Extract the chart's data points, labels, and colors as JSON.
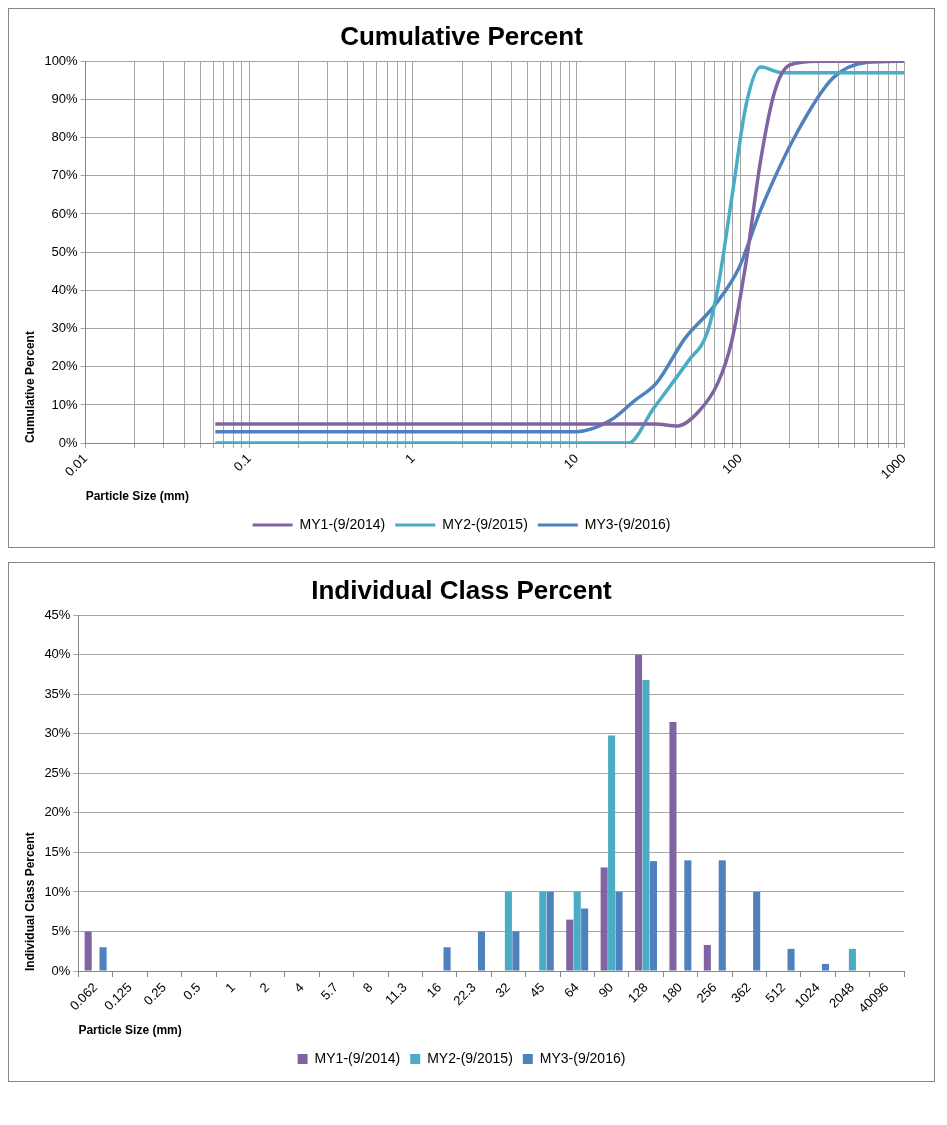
{
  "chart_data": [
    {
      "type": "line",
      "title": "Cumulative Percent",
      "xlabel": "Particle Size (mm)",
      "ylabel": "Cumulative Percent",
      "log": "x",
      "grid": true,
      "legend": "bottom",
      "marker": "none",
      "line_style": "solid",
      "xlim": [
        0.01,
        1000
      ],
      "ylim": [
        0,
        100
      ],
      "xticks": [
        0.01,
        {
          "value": 0.02,
          "label": null
        },
        {
          "value": 0.03,
          "label": null
        },
        {
          "value": 0.04,
          "label": null
        },
        {
          "value": 0.05,
          "label": null
        },
        {
          "value": 0.06,
          "label": null
        },
        {
          "value": 0.07,
          "label": null
        },
        {
          "value": 0.08,
          "label": null
        },
        {
          "value": 0.09,
          "label": null
        },
        0.1,
        {
          "value": 0.2,
          "label": null
        },
        {
          "value": 0.3,
          "label": null
        },
        {
          "value": 0.4,
          "label": null
        },
        {
          "value": 0.5,
          "label": null
        },
        {
          "value": 0.6,
          "label": null
        },
        {
          "value": 0.7,
          "label": null
        },
        {
          "value": 0.8,
          "label": null
        },
        {
          "value": 0.9,
          "label": null
        },
        1,
        {
          "value": 2,
          "label": null
        },
        {
          "value": 3,
          "label": null
        },
        {
          "value": 4,
          "label": null
        },
        {
          "value": 5,
          "label": null
        },
        {
          "value": 6,
          "label": null
        },
        {
          "value": 7,
          "label": null
        },
        {
          "value": 8,
          "label": null
        },
        {
          "value": 9,
          "label": null
        },
        10,
        {
          "value": 20,
          "label": null
        },
        {
          "value": 30,
          "label": null
        },
        {
          "value": 40,
          "label": null
        },
        {
          "value": 50,
          "label": null
        },
        {
          "value": 60,
          "label": null
        },
        {
          "value": 70,
          "label": null
        },
        {
          "value": 80,
          "label": null
        },
        {
          "value": 90,
          "label": null
        },
        100,
        {
          "value": 200,
          "label": null
        },
        {
          "value": 300,
          "label": null
        },
        {
          "value": 400,
          "label": null
        },
        {
          "value": 500,
          "label": null
        },
        {
          "value": 600,
          "label": null
        },
        {
          "value": 700,
          "label": null
        },
        {
          "value": 800,
          "label": null
        },
        {
          "value": 900,
          "label": null
        },
        1000
      ],
      "yticks": [
        {
          "value": 0,
          "label": "0%"
        },
        {
          "value": 10,
          "label": "10%"
        },
        {
          "value": 20,
          "label": "20%"
        },
        {
          "value": 30,
          "label": "30%"
        },
        {
          "value": 40,
          "label": "40%"
        },
        {
          "value": 50,
          "label": "50%"
        },
        {
          "value": 60,
          "label": "60%"
        },
        {
          "value": 70,
          "label": "70%"
        },
        {
          "value": 80,
          "label": "80%"
        },
        {
          "value": 90,
          "label": "90%"
        },
        {
          "value": 100,
          "label": "100%"
        }
      ],
      "series": [
        {
          "name": "MY1-(9/2014)",
          "color": "#8064a2",
          "x": [
            0.062,
            1,
            10,
            30,
            41.5,
            55,
            72.8,
            88.5,
            109,
            133,
            162,
            200,
            300,
            1000
          ],
          "values": [
            5,
            5,
            5,
            5,
            4.5,
            8,
            15.7,
            26.6,
            48,
            74,
            92,
            99,
            100,
            100
          ]
        },
        {
          "name": "MY2-(9/2015)",
          "color": "#4bacc6",
          "x": [
            0.062,
            1,
            10,
            20.7,
            29.3,
            48.3,
            62.5,
            72.8,
            88.5,
            109,
            133,
            180,
            1000
          ],
          "values": [
            0,
            0,
            0,
            0,
            8.9,
            21.6,
            28.7,
            40.5,
            64,
            89,
            98.5,
            97,
            97
          ]
        },
        {
          "name": "MY3-(9/2016)",
          "color": "#4f81bd",
          "x": [
            0.062,
            1,
            10,
            16,
            22.7,
            30.7,
            46,
            69.5,
            98.4,
            133,
            220,
            368,
            600,
            1000
          ],
          "values": [
            3,
            3,
            3,
            5.9,
            11.2,
            15.7,
            27.5,
            36,
            46,
            61,
            81,
            95.6,
            99.7,
            100
          ]
        }
      ]
    },
    {
      "type": "bar",
      "title": "Individual Class Percent",
      "xlabel": "Particle Size (mm)",
      "ylabel": "Individual Class Percent",
      "grid": "y",
      "legend": "bottom",
      "categories": [
        "0.062",
        "0.125",
        "0.25",
        "0.5",
        "1",
        "2",
        "4",
        "5.7",
        "8",
        "11.3",
        "16",
        "22.3",
        "32",
        "45",
        "64",
        "90",
        "128",
        "180",
        "256",
        "362",
        "512",
        "1024",
        "2048",
        "40096"
      ],
      "ylim": [
        0,
        45
      ],
      "yticks": [
        {
          "value": 0,
          "label": "0%"
        },
        {
          "value": 5,
          "label": "5%"
        },
        {
          "value": 10,
          "label": "10%"
        },
        {
          "value": 15,
          "label": "15%"
        },
        {
          "value": 20,
          "label": "20%"
        },
        {
          "value": 25,
          "label": "25%"
        },
        {
          "value": 30,
          "label": "30%"
        },
        {
          "value": 35,
          "label": "35%"
        },
        {
          "value": 40,
          "label": "40%"
        },
        {
          "value": 45,
          "label": "45%"
        }
      ],
      "series": [
        {
          "name": "MY1-(9/2014)",
          "color": "#8064a2",
          "values": [
            5,
            0,
            0,
            0,
            0,
            0,
            0,
            0,
            0,
            0,
            0,
            0,
            0,
            0,
            6.5,
            13.1,
            40,
            31.5,
            3.3,
            0,
            0,
            0,
            0,
            0
          ]
        },
        {
          "name": "MY2-(9/2015)",
          "color": "#4bacc6",
          "values": [
            0,
            0,
            0,
            0,
            0,
            0,
            0,
            0,
            0,
            0,
            0,
            0,
            10,
            10,
            10,
            29.8,
            36.8,
            0,
            0,
            0,
            0,
            0,
            2.8,
            0
          ]
        },
        {
          "name": "MY3-(9/2016)",
          "color": "#4f81bd",
          "values": [
            3,
            0,
            0,
            0,
            0,
            0,
            0,
            0,
            0,
            0,
            3,
            5,
            5,
            10,
            7.9,
            10,
            13.9,
            14,
            14,
            10,
            2.8,
            0.9,
            0,
            0
          ]
        }
      ]
    }
  ]
}
